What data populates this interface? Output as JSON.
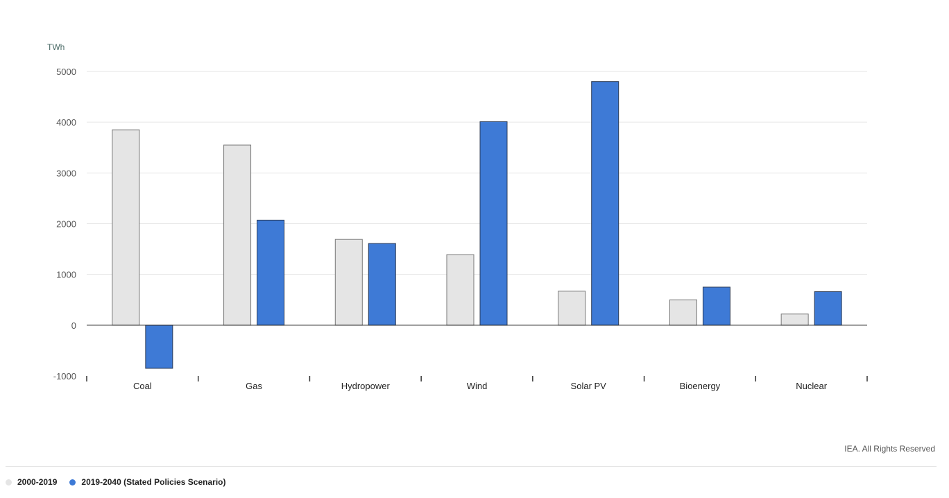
{
  "chart_data": {
    "type": "bar",
    "title": "",
    "ylabel": "TWh",
    "xlabel": "",
    "ylim": [
      -1000,
      5000
    ],
    "yticks": [
      -1000,
      0,
      1000,
      2000,
      3000,
      4000,
      5000
    ],
    "grid": true,
    "categories": [
      "Coal",
      "Gas",
      "Hydropower",
      "Wind",
      "Solar PV",
      "Bioenergy",
      "Nuclear"
    ],
    "series": [
      {
        "name": "2000-2019",
        "color": "#e5e5e5",
        "values": [
          3850,
          3550,
          1690,
          1390,
          670,
          500,
          220
        ]
      },
      {
        "name": "2019-2040 (Stated Policies Scenario)",
        "color": "#3e7ad6",
        "values": [
          -850,
          2070,
          1610,
          4010,
          4800,
          750,
          660
        ]
      }
    ],
    "legend_position": "bottom-left"
  },
  "credit": "IEA. All Rights Reserved"
}
